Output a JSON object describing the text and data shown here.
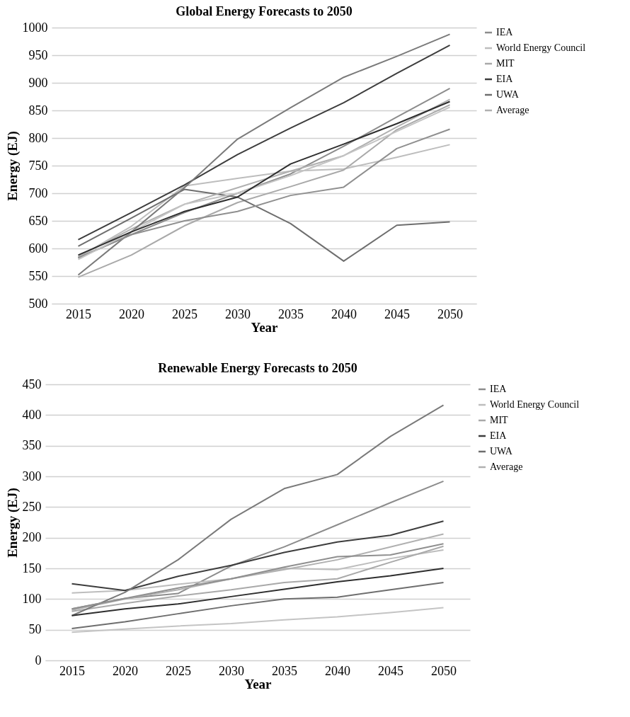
{
  "chart_data": [
    {
      "type": "line",
      "title": "Global Energy Forecasts to 2050",
      "xlabel": "Year",
      "ylabel": "Energy (EJ)",
      "categories": [
        "2015",
        "2020",
        "2025",
        "2030",
        "2035",
        "2040",
        "2045",
        "2050"
      ],
      "ylim": [
        500,
        1000
      ],
      "yticks": [
        500,
        550,
        600,
        650,
        700,
        750,
        800,
        850,
        900,
        950,
        1000
      ],
      "grid": "y",
      "legend": "right",
      "series": [
        {
          "name": "IEA",
          "color": "#8c8c8c",
          "values": [
            583,
            625,
            665,
            700,
            735,
            785,
            838,
            890
          ]
        },
        {
          "color": "#7a7a7a",
          "values": [
            552,
            630,
            710,
            798,
            855,
            910,
            948,
            988
          ]
        },
        {
          "name": "World Energy Council",
          "color": "#bdbdbd",
          "values": [
            584,
            640,
            713,
            727,
            740,
            744,
            765,
            788
          ]
        },
        {
          "color": "#8f8f8f",
          "values": [
            583,
            625,
            650,
            667,
            696,
            711,
            781,
            816
          ]
        },
        {
          "name": "MIT",
          "color": "#a9a9a9",
          "values": [
            548,
            588,
            641,
            683,
            712,
            742,
            815,
            860
          ]
        },
        {
          "color": "#c4c4c4",
          "values": [
            580,
            630,
            680,
            700,
            732,
            768,
            812,
            856
          ]
        },
        {
          "name": "EIA",
          "color": "#3d3d3d",
          "values": [
            616,
            665,
            715,
            770,
            818,
            864,
            917,
            968
          ]
        },
        {
          "color": "#2e2e2e",
          "values": [
            588,
            630,
            667,
            693,
            753,
            789,
            826,
            866
          ]
        },
        {
          "name": "UWA",
          "color": "#6e6e6e",
          "values": [
            604,
            655,
            707,
            693,
            645,
            577,
            642,
            648
          ]
        },
        {
          "name": "Average",
          "color": "#b0b0b0",
          "values": [
            585,
            635,
            680,
            710,
            740,
            768,
            820,
            870
          ]
        }
      ]
    },
    {
      "type": "line",
      "title": "Renewable Energy Forecasts to 2050",
      "xlabel": "Year",
      "ylabel": "Energy (EJ)",
      "categories": [
        "2015",
        "2020",
        "2025",
        "2030",
        "2035",
        "2040",
        "2045",
        "2050"
      ],
      "ylim": [
        0,
        450
      ],
      "yticks": [
        0,
        50,
        100,
        150,
        200,
        250,
        300,
        350,
        400,
        450
      ],
      "grid": "y",
      "legend": "right",
      "series": [
        {
          "name": "IEA",
          "color": "#8c8c8c",
          "values": [
            84,
            101,
            109,
            154,
            185,
            221,
            257,
            292
          ]
        },
        {
          "color": "#7a7a7a",
          "values": [
            73,
            111,
            164,
            230,
            280,
            303,
            365,
            416
          ]
        },
        {
          "name": "World Energy Council",
          "color": "#bdbdbd",
          "values": [
            110,
            114,
            124,
            133,
            150,
            148,
            166,
            180
          ]
        },
        {
          "color": "#8f8f8f",
          "values": [
            84,
            101,
            118,
            133,
            152,
            169,
            172,
            190
          ]
        },
        {
          "name": "MIT",
          "color": "#a9a9a9",
          "values": [
            80,
            93,
            105,
            115,
            127,
            133,
            160,
            186
          ]
        },
        {
          "color": "#c4c4c4",
          "values": [
            46,
            51,
            56,
            60,
            66,
            71,
            78,
            86
          ]
        },
        {
          "name": "EIA",
          "color": "#3d3d3d",
          "values": [
            125,
            114,
            137,
            155,
            176,
            193,
            204,
            227
          ]
        },
        {
          "color": "#2e2e2e",
          "values": [
            73,
            84,
            92,
            104,
            116,
            128,
            138,
            150
          ]
        },
        {
          "name": "UWA",
          "color": "#6e6e6e",
          "values": [
            52,
            63,
            76,
            89,
            100,
            103,
            115,
            127
          ]
        },
        {
          "name": "Average",
          "color": "#b0b0b0",
          "values": [
            82,
            100,
            115,
            133,
            148,
            164,
            185,
            206
          ]
        }
      ]
    }
  ]
}
